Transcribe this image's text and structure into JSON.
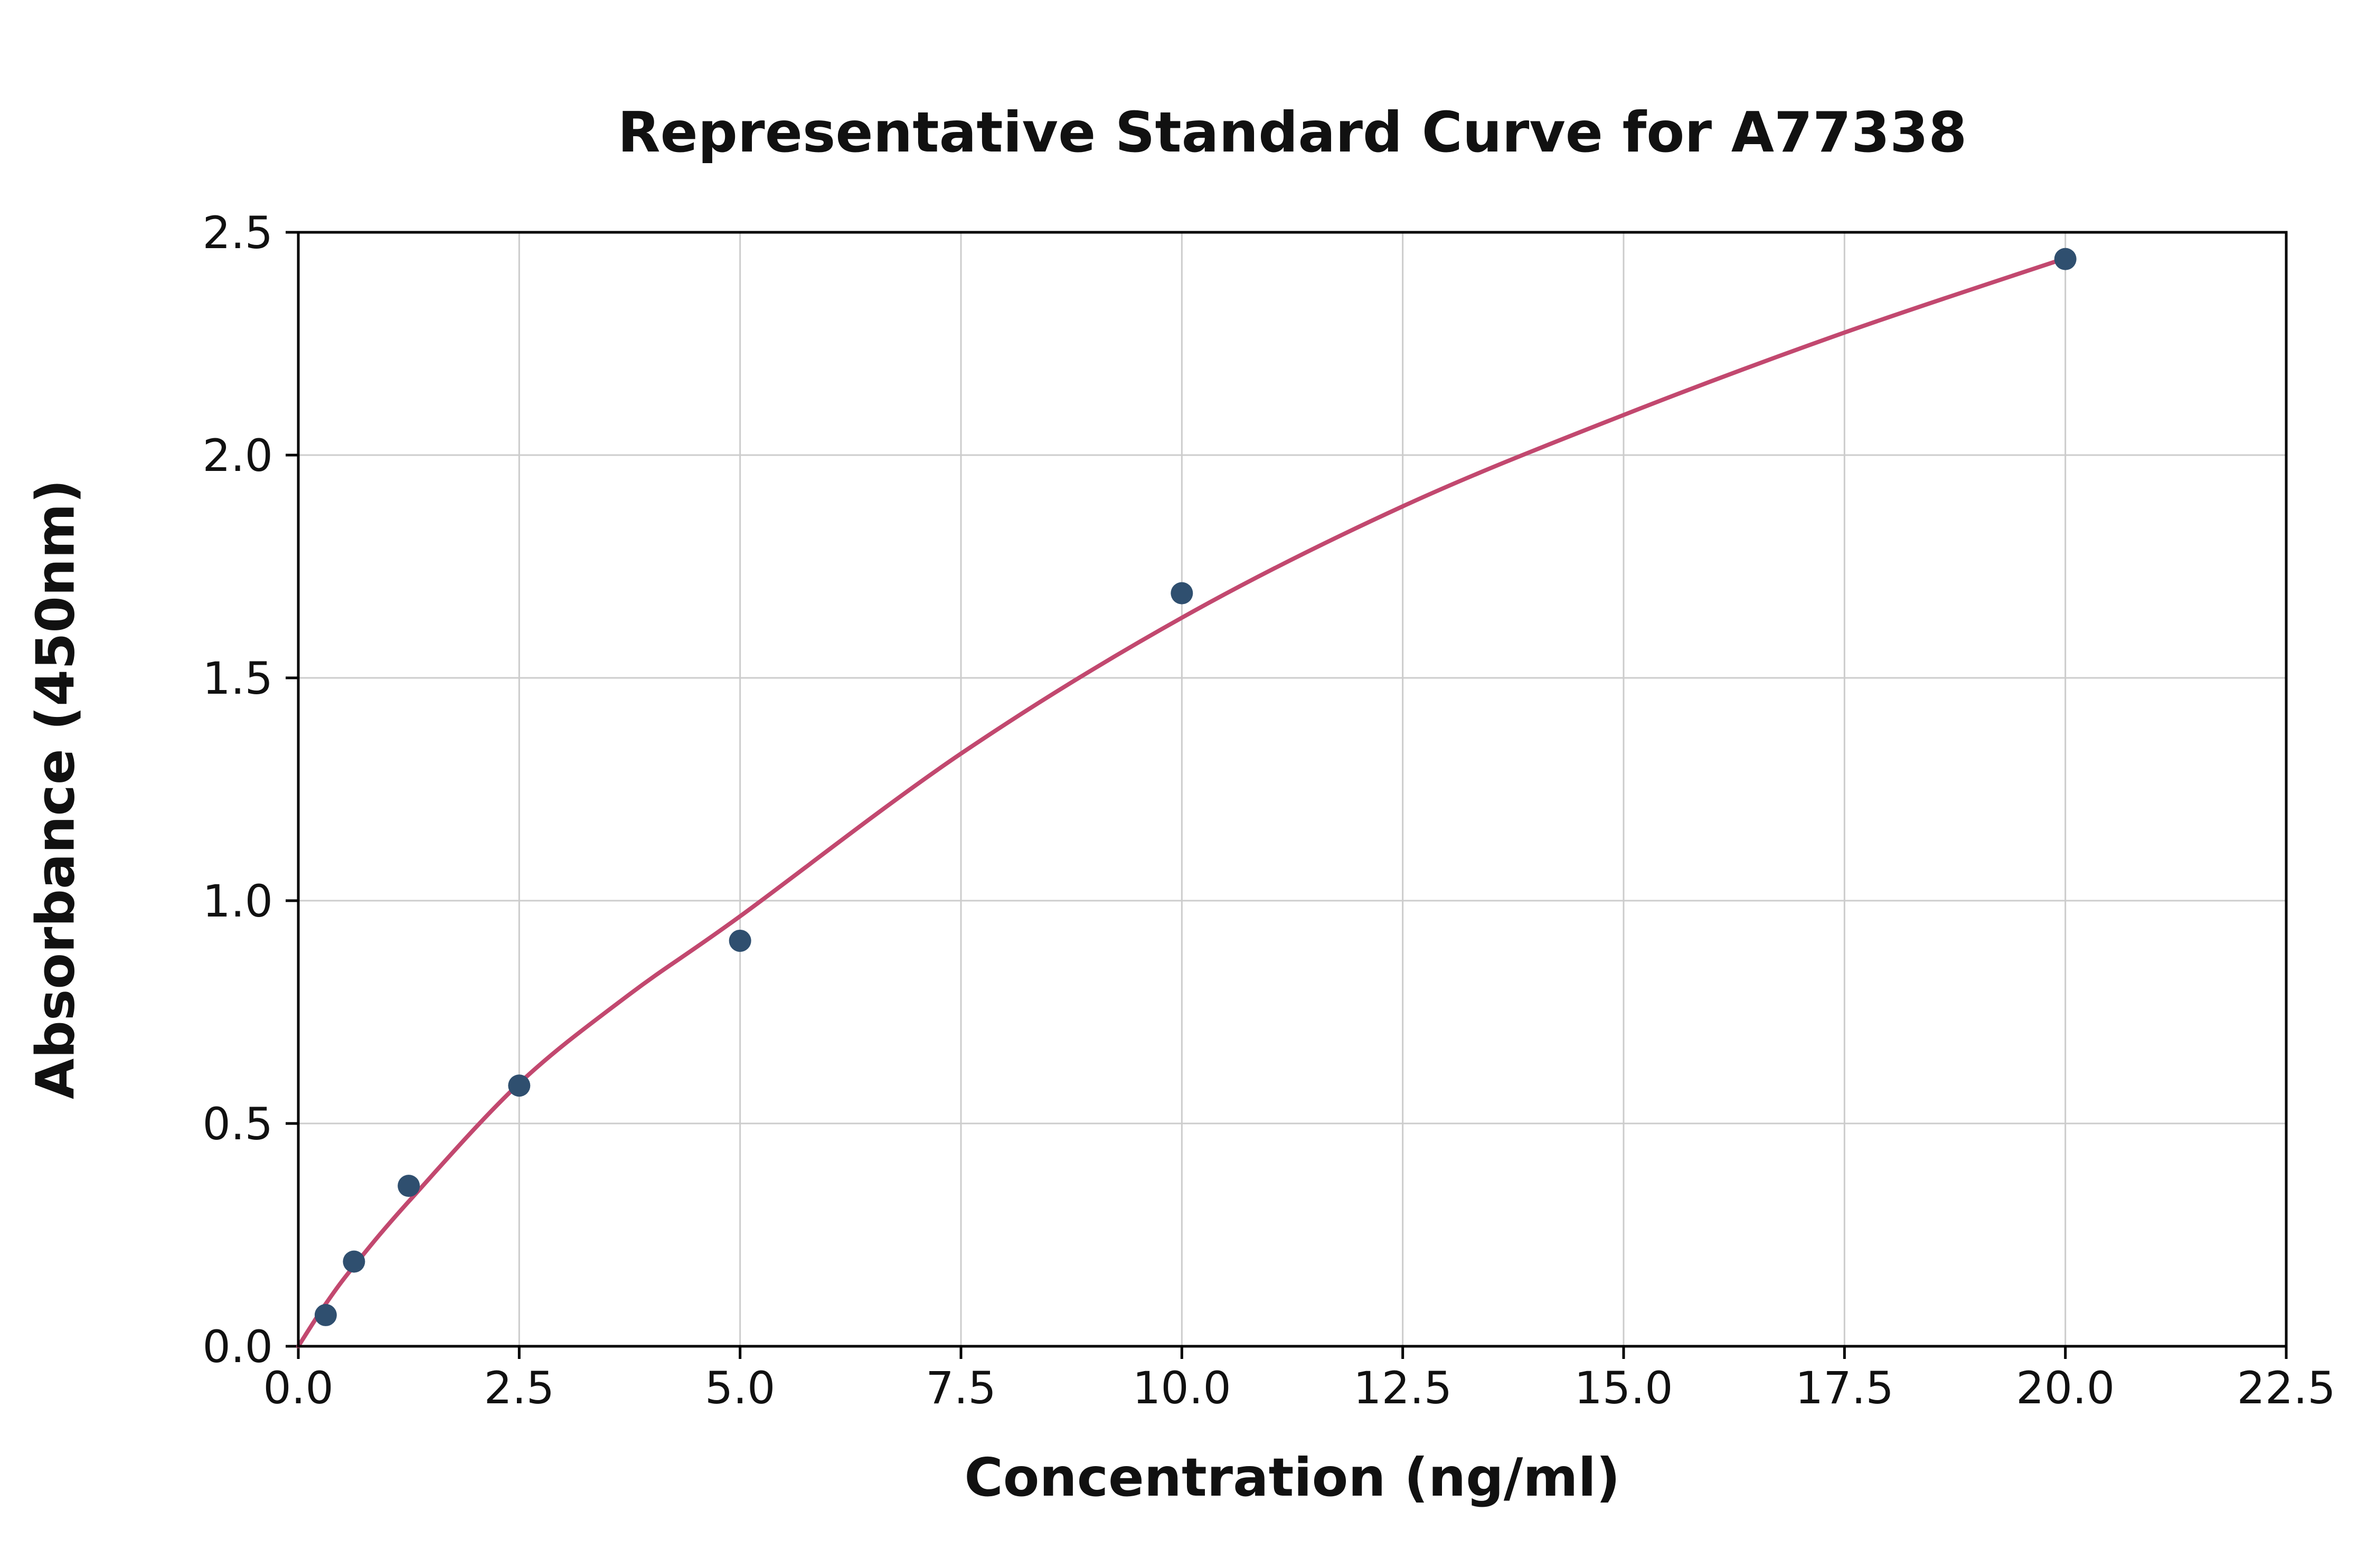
{
  "chart_data": {
    "type": "scatter",
    "title": "Representative Standard Curve for A77338",
    "xlabel": "Concentration (ng/ml)",
    "ylabel": "Absorbance (450nm)",
    "xlim": [
      0,
      22.5
    ],
    "ylim": [
      0,
      2.5
    ],
    "x_ticks": [
      0.0,
      2.5,
      5.0,
      7.5,
      10.0,
      12.5,
      15.0,
      17.5,
      20.0,
      22.5
    ],
    "x_tick_labels": [
      "0.0",
      "2.5",
      "5.0",
      "7.5",
      "10.0",
      "12.5",
      "15.0",
      "17.5",
      "20.0",
      "22.5"
    ],
    "y_ticks": [
      0.0,
      0.5,
      1.0,
      1.5,
      2.0,
      2.5
    ],
    "y_tick_labels": [
      "0.0",
      "0.5",
      "1.0",
      "1.5",
      "2.0",
      "2.5"
    ],
    "grid": true,
    "legend": "none",
    "series": [
      {
        "name": "standard-points",
        "type": "scatter",
        "color": "#2f4f6f",
        "x": [
          0.31,
          0.63,
          1.25,
          2.5,
          5.0,
          10.0,
          20.0
        ],
        "y": [
          0.07,
          0.19,
          0.36,
          0.585,
          0.91,
          1.69,
          2.44
        ]
      },
      {
        "name": "fit-curve",
        "type": "line",
        "color": "#c2486f",
        "x": [
          0,
          0.31,
          0.63,
          1.25,
          2.5,
          3.75,
          5.0,
          7.5,
          10.0,
          12.5,
          15.0,
          17.5,
          20.05
        ],
        "y": [
          0.0,
          0.095,
          0.18,
          0.325,
          0.59,
          0.79,
          0.965,
          1.33,
          1.635,
          1.885,
          2.09,
          2.275,
          2.445
        ]
      }
    ],
    "colors": {
      "grid": "#cccccc",
      "axis": "#000000",
      "text": "#111111",
      "background": "#ffffff"
    }
  }
}
